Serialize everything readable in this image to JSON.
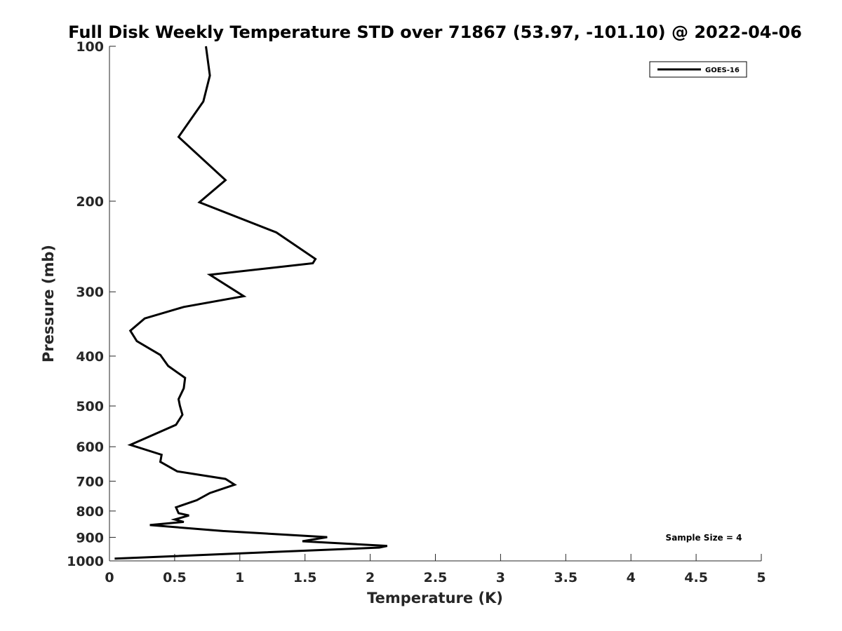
{
  "chart_data": {
    "type": "line",
    "title": "Full Disk Weekly Temperature STD over 71867 (53.97, -101.10) @ 2022-04-06",
    "xlabel": "Temperature (K)",
    "ylabel": "Pressure (mb)",
    "xlim": [
      0,
      5
    ],
    "ylim": [
      100,
      1000
    ],
    "yscale": "log",
    "y_reversed": true,
    "x_ticks": [
      0,
      0.5,
      1,
      1.5,
      2,
      2.5,
      3,
      3.5,
      4,
      4.5,
      5
    ],
    "x_tick_labels": [
      "0",
      "0.5",
      "1",
      "1.5",
      "2",
      "2.5",
      "3",
      "3.5",
      "4",
      "4.5",
      "5"
    ],
    "y_ticks": [
      100,
      200,
      300,
      400,
      500,
      600,
      700,
      800,
      900,
      1000
    ],
    "y_tick_labels": [
      "100",
      "200",
      "300",
      "400",
      "500",
      "600",
      "700",
      "800",
      "900",
      "1000"
    ],
    "grid": false,
    "legend_position": "top-right",
    "annotation": "Sample Size = 4",
    "series": [
      {
        "name": "GOES-16",
        "color": "#000000",
        "x": [
          0.74,
          0.77,
          0.72,
          0.53,
          0.89,
          0.69,
          1.28,
          1.58,
          1.56,
          0.77,
          1.03,
          0.57,
          0.27,
          0.16,
          0.21,
          0.39,
          0.45,
          0.58,
          0.57,
          0.53,
          0.54,
          0.56,
          0.51,
          0.28,
          0.16,
          0.4,
          0.39,
          0.52,
          0.89,
          0.96,
          0.77,
          0.67,
          0.51,
          0.53,
          0.61,
          0.5,
          0.57,
          0.31,
          0.87,
          1.67,
          1.48,
          2.13,
          2.07,
          0.04
        ],
        "y": [
          100,
          114,
          128,
          150,
          182,
          201,
          230,
          259,
          264,
          278,
          306,
          321,
          338,
          357,
          374,
          398,
          418,
          441,
          462,
          485,
          499,
          520,
          544,
          577,
          595,
          622,
          642,
          670,
          693,
          711,
          738,
          762,
          787,
          808,
          816,
          831,
          840,
          852,
          875,
          899,
          916,
          935,
          942,
          990
        ]
      }
    ]
  }
}
